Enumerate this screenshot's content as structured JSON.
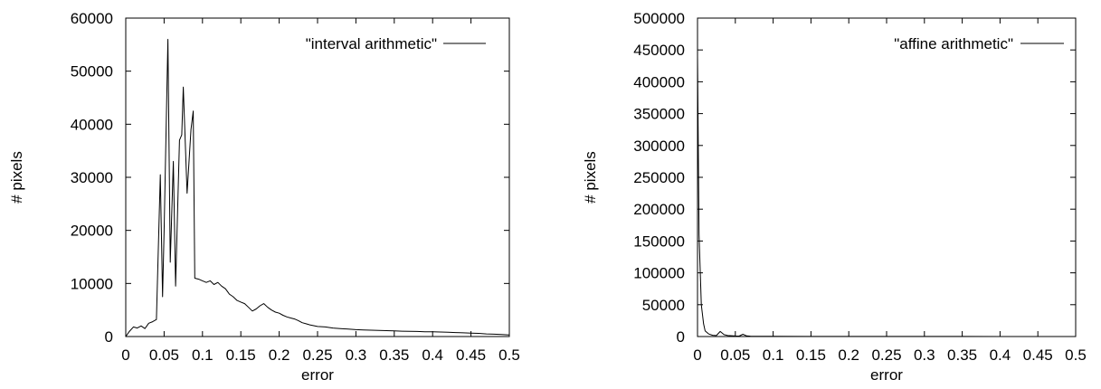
{
  "chart_data": [
    {
      "type": "line",
      "title": "",
      "xlabel": "error",
      "ylabel": "# pixels",
      "xlim": [
        0,
        0.5
      ],
      "ylim": [
        0,
        60000
      ],
      "grid": false,
      "legend_placement": "top-right",
      "x_ticks": [
        0,
        0.05,
        0.1,
        0.15,
        0.2,
        0.25,
        0.3,
        0.35,
        0.4,
        0.45,
        0.5
      ],
      "x_tick_labels": [
        "0",
        "0.05",
        "0.1",
        "0.15",
        "0.2",
        "0.25",
        "0.3",
        "0.35",
        "0.4",
        "0.45",
        "0.5"
      ],
      "y_ticks": [
        0,
        10000,
        20000,
        30000,
        40000,
        50000,
        60000
      ],
      "y_tick_labels": [
        "0",
        "10000",
        "20000",
        "30000",
        "40000",
        "50000",
        "60000"
      ],
      "series": [
        {
          "name": "\"interval arithmetic\"",
          "color": "#000000",
          "x": [
            0,
            0.005,
            0.01,
            0.015,
            0.02,
            0.025,
            0.03,
            0.035,
            0.04,
            0.045,
            0.048,
            0.05,
            0.055,
            0.058,
            0.062,
            0.065,
            0.07,
            0.073,
            0.075,
            0.08,
            0.085,
            0.088,
            0.09,
            0.095,
            0.1,
            0.105,
            0.11,
            0.115,
            0.12,
            0.125,
            0.13,
            0.135,
            0.14,
            0.145,
            0.15,
            0.155,
            0.16,
            0.165,
            0.17,
            0.175,
            0.18,
            0.185,
            0.19,
            0.195,
            0.2,
            0.205,
            0.21,
            0.215,
            0.22,
            0.225,
            0.23,
            0.235,
            0.24,
            0.25,
            0.26,
            0.27,
            0.28,
            0.29,
            0.3,
            0.31,
            0.32,
            0.33,
            0.34,
            0.35,
            0.36,
            0.37,
            0.38,
            0.39,
            0.4,
            0.41,
            0.42,
            0.43,
            0.44,
            0.45,
            0.46,
            0.47,
            0.48,
            0.49,
            0.5
          ],
          "values": [
            0,
            1000,
            1800,
            1600,
            2000,
            1500,
            2500,
            2800,
            3200,
            30500,
            7500,
            20000,
            56000,
            14000,
            33000,
            9500,
            37000,
            38000,
            47000,
            27000,
            39000,
            42500,
            11000,
            10800,
            10500,
            10200,
            10500,
            9800,
            10200,
            9500,
            9000,
            8000,
            7500,
            6800,
            6500,
            6200,
            5500,
            4800,
            5200,
            5800,
            6200,
            5500,
            5000,
            4600,
            4400,
            4000,
            3700,
            3500,
            3300,
            3000,
            2600,
            2400,
            2200,
            1900,
            1800,
            1600,
            1500,
            1400,
            1300,
            1250,
            1200,
            1150,
            1100,
            1050,
            1000,
            980,
            950,
            900,
            880,
            850,
            800,
            750,
            700,
            650,
            600,
            500,
            450,
            400,
            300
          ]
        }
      ]
    },
    {
      "type": "line",
      "title": "",
      "xlabel": "error",
      "ylabel": "# pixels",
      "xlim": [
        0,
        0.5
      ],
      "ylim": [
        0,
        500000
      ],
      "grid": false,
      "legend_placement": "top-right",
      "x_ticks": [
        0,
        0.05,
        0.1,
        0.15,
        0.2,
        0.25,
        0.3,
        0.35,
        0.4,
        0.45,
        0.5
      ],
      "x_tick_labels": [
        "0",
        "0.05",
        "0.1",
        "0.15",
        "0.2",
        "0.25",
        "0.3",
        "0.35",
        "0.4",
        "0.45",
        "0.5"
      ],
      "y_ticks": [
        0,
        50000,
        100000,
        150000,
        200000,
        250000,
        300000,
        350000,
        400000,
        450000,
        500000
      ],
      "y_tick_labels": [
        "0",
        "50000",
        "100000",
        "150000",
        "200000",
        "250000",
        "300000",
        "350000",
        "400000",
        "450000",
        "500000"
      ],
      "series": [
        {
          "name": "\"affine arithmetic\"",
          "color": "#000000",
          "x": [
            0,
            0.002,
            0.005,
            0.008,
            0.01,
            0.015,
            0.02,
            0.025,
            0.03,
            0.035,
            0.04,
            0.05,
            0.055,
            0.06,
            0.065,
            0.07,
            0.08,
            0.1,
            0.15,
            0.2,
            0.25,
            0.3,
            0.35,
            0.4,
            0.45,
            0.5
          ],
          "values": [
            440000,
            160000,
            50000,
            20000,
            9000,
            4000,
            2000,
            1500,
            8000,
            3000,
            1500,
            800,
            700,
            3500,
            1000,
            600,
            400,
            300,
            200,
            150,
            120,
            100,
            80,
            60,
            50,
            40
          ]
        }
      ]
    }
  ]
}
